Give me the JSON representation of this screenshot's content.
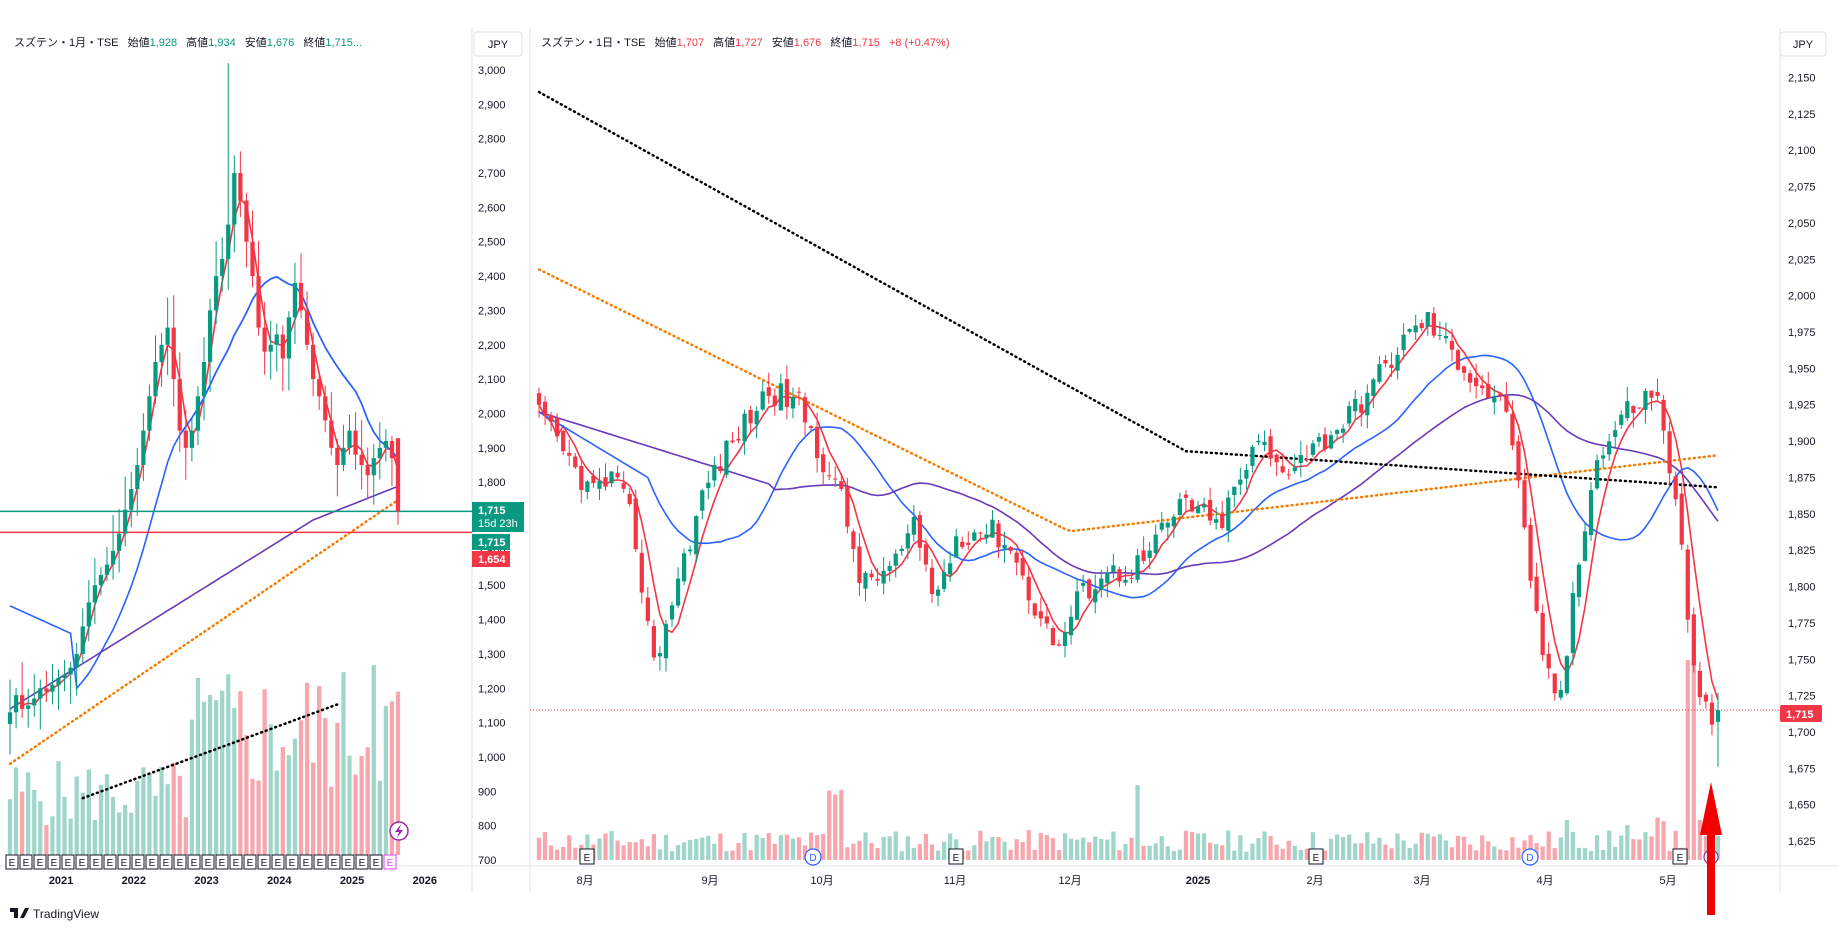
{
  "colors": {
    "up": "#089981",
    "down": "#f23645",
    "upVol": "#9fd6c9",
    "downVol": "#f7a6ad",
    "ma_red": "#f23645",
    "ma_blue": "#2962ff",
    "ma_purple": "#673ab7",
    "ma_orange": "#f57c00",
    "ma_black": "#000000",
    "green_line": "#089981",
    "red_line": "#f23645"
  },
  "left": {
    "title": {
      "symbol": "スズテン・1月・TSE",
      "o_label": "始値",
      "o": "1,928",
      "h_label": "高値",
      "h": "1,934",
      "l_label": "安値",
      "l": "1,676",
      "c_label": "終値",
      "c": "1,715..."
    },
    "currency": "JPY",
    "badges": {
      "price": "1,715",
      "countdown": "15d 23h",
      "price2": "1,715",
      "low": "1,654"
    },
    "lightning_icon": "lightning-icon",
    "event_marker": "E"
  },
  "right": {
    "title": {
      "symbol": "スズテン・1日・TSE",
      "o_label": "始値",
      "o": "1,707",
      "h_label": "高値",
      "h": "1,727",
      "l_label": "安値",
      "l": "1,676",
      "c_label": "終値",
      "c": "1,715",
      "chg": "+8 (+0.47%)"
    },
    "currency": "JPY",
    "badges": {
      "price": "1,715"
    },
    "event_markers": [
      "E",
      "D",
      "E",
      "E",
      "D",
      "E"
    ]
  },
  "logo": "TradingView",
  "chart_data": [
    {
      "type": "candlestick",
      "interval": "1月",
      "ylim": [
        700,
        3000
      ],
      "y_ticks": [
        "3,000",
        "2,900",
        "2,800",
        "2,700",
        "2,600",
        "2,500",
        "2,400",
        "2,300",
        "2,200",
        "2,100",
        "2,000",
        "1,900",
        "1,800",
        "1,700",
        "1,600",
        "1,500",
        "1,400",
        "1,300",
        "1,200",
        "1,100",
        "1,000",
        "900",
        "800",
        "700"
      ],
      "x_ticks": [
        "2021",
        "2022",
        "2023",
        "2024",
        "2025",
        "2026"
      ],
      "horizontal_lines": [
        {
          "value": 1715,
          "color": "green"
        },
        {
          "value": 1654,
          "color": "red"
        }
      ],
      "closes": [
        1130,
        1180,
        1140,
        1150,
        1170,
        1200,
        1190,
        1210,
        1230,
        1240,
        1260,
        1300,
        1380,
        1450,
        1500,
        1530,
        1560,
        1600,
        1650,
        1720,
        1780,
        1850,
        1950,
        2050,
        2150,
        2200,
        2250,
        2100,
        1950,
        1900,
        1950,
        2050,
        2150,
        2300,
        2400,
        2450,
        2550,
        2700,
        2620,
        2500,
        2400,
        2250,
        2180,
        2200,
        2230,
        2160,
        2280,
        2380,
        2300,
        2200,
        2100,
        2050,
        1980,
        1900,
        1850,
        1900,
        1950,
        1880,
        1850,
        1820,
        1870,
        1900,
        1920,
        1870,
        1715
      ]
    },
    {
      "type": "candlestick",
      "interval": "1日",
      "ylim": [
        1612,
        2162
      ],
      "y_ticks": [
        "2,150",
        "2,125",
        "2,100",
        "2,075",
        "2,050",
        "2,025",
        "2,000",
        "1,975",
        "1,950",
        "1,925",
        "1,900",
        "1,875",
        "1,850",
        "1,825",
        "1,800",
        "1,775",
        "1,750",
        "1,725",
        "1,700",
        "1,675",
        "1,650",
        "1,625"
      ],
      "x_ticks": [
        "8月",
        "9月",
        "10月",
        "11月",
        "12月",
        "2025",
        "2月",
        "3月",
        "4月",
        "5月"
      ],
      "last": 1715
    }
  ]
}
